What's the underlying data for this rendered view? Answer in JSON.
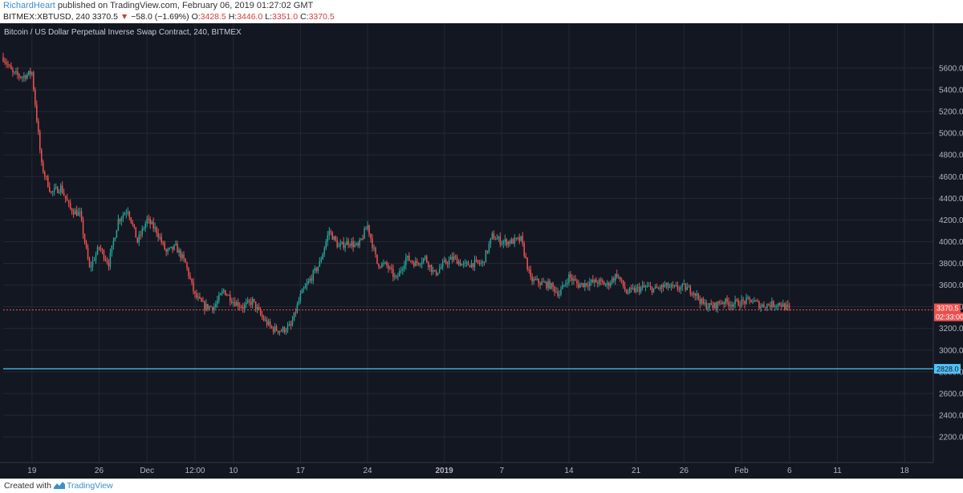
{
  "publish": {
    "author": "RichardHeart",
    "text": " published on TradingView.com, February 06, 2019 01:27:02 GMT"
  },
  "symbol": {
    "ticker": "BITMEX:XBTUSD, 240",
    "last": "3370.5",
    "change": "−58.0 (−1.69%)",
    "open_label": "O:",
    "open": "3428.5",
    "high_label": "H:",
    "high": "3446.0",
    "low_label": "L:",
    "low": "3351.0",
    "close_label": "C:",
    "close": "3370.5"
  },
  "footer": {
    "created_with": "Created with",
    "brand": "TradingView"
  },
  "colors": {
    "background": "#131722",
    "grid": "#242833",
    "up": "#26a69a",
    "down": "#ef5350",
    "price_line": "#ef5350",
    "support_line": "#4fc3f7"
  },
  "chart_data": {
    "type": "candlestick",
    "title": "Bitcoin / US Dollar Perpetual Inverse Swap Contract, 240, BITMEX",
    "y_range": [
      2000,
      5800
    ],
    "y_ticks": [
      "5600.0",
      "5400.0",
      "5200.0",
      "5000.0",
      "4800.0",
      "4600.0",
      "4400.0",
      "4200.0",
      "4000.0",
      "3800.0",
      "3600.0",
      "3400.0",
      "3200.0",
      "3000.0",
      "2800.0",
      "2600.0",
      "2400.0",
      "2200.0"
    ],
    "x_range": [
      "2018-11-16",
      "2019-02-21"
    ],
    "x_ticks": [
      {
        "label": "19",
        "date": "2018-11-19"
      },
      {
        "label": "26",
        "date": "2018-11-26"
      },
      {
        "label": "Dec",
        "date": "2018-12-01"
      },
      {
        "label": "12:00",
        "date": "2018-12-06"
      },
      {
        "label": "10",
        "date": "2018-12-10"
      },
      {
        "label": "17",
        "date": "2018-12-17"
      },
      {
        "label": "24",
        "date": "2018-12-24"
      },
      {
        "label": "2019",
        "date": "2019-01-01"
      },
      {
        "label": "7",
        "date": "2019-01-07"
      },
      {
        "label": "14",
        "date": "2019-01-14"
      },
      {
        "label": "21",
        "date": "2019-01-21"
      },
      {
        "label": "26",
        "date": "2019-01-26"
      },
      {
        "label": "Feb",
        "date": "2019-02-01"
      },
      {
        "label": "6",
        "date": "2019-02-06"
      },
      {
        "label": "11",
        "date": "2019-02-11"
      },
      {
        "label": "18",
        "date": "2019-02-18"
      }
    ],
    "price_path": [
      [
        "2018-11-16",
        5700
      ],
      [
        "2018-11-17",
        5550
      ],
      [
        "2018-11-18",
        5520
      ],
      [
        "2018-11-19",
        5560
      ],
      [
        "2018-11-20",
        4700
      ],
      [
        "2018-11-21",
        4450
      ],
      [
        "2018-11-22",
        4500
      ],
      [
        "2018-11-23",
        4300
      ],
      [
        "2018-11-24",
        4250
      ],
      [
        "2018-11-25",
        3750
      ],
      [
        "2018-11-26",
        3950
      ],
      [
        "2018-11-27",
        3800
      ],
      [
        "2018-11-28",
        4200
      ],
      [
        "2018-11-29",
        4300
      ],
      [
        "2018-11-30",
        4000
      ],
      [
        "2018-12-01",
        4200
      ],
      [
        "2018-12-02",
        4100
      ],
      [
        "2018-12-03",
        3900
      ],
      [
        "2018-12-04",
        3950
      ],
      [
        "2018-12-05",
        3800
      ],
      [
        "2018-12-06",
        3500
      ],
      [
        "2018-12-07",
        3400
      ],
      [
        "2018-12-08",
        3400
      ],
      [
        "2018-12-09",
        3550
      ],
      [
        "2018-12-10",
        3450
      ],
      [
        "2018-12-11",
        3400
      ],
      [
        "2018-12-12",
        3450
      ],
      [
        "2018-12-13",
        3300
      ],
      [
        "2018-12-14",
        3200
      ],
      [
        "2018-12-15",
        3180
      ],
      [
        "2018-12-16",
        3220
      ],
      [
        "2018-12-17",
        3500
      ],
      [
        "2018-12-18",
        3650
      ],
      [
        "2018-12-19",
        3800
      ],
      [
        "2018-12-20",
        4100
      ],
      [
        "2018-12-21",
        3950
      ],
      [
        "2018-12-22",
        4000
      ],
      [
        "2018-12-23",
        3950
      ],
      [
        "2018-12-24",
        4150
      ],
      [
        "2018-12-25",
        3800
      ],
      [
        "2018-12-26",
        3780
      ],
      [
        "2018-12-27",
        3650
      ],
      [
        "2018-12-28",
        3850
      ],
      [
        "2018-12-29",
        3800
      ],
      [
        "2018-12-30",
        3850
      ],
      [
        "2018-12-31",
        3700
      ],
      [
        "2019-01-01",
        3800
      ],
      [
        "2019-01-02",
        3850
      ],
      [
        "2019-01-03",
        3780
      ],
      [
        "2019-01-04",
        3800
      ],
      [
        "2019-01-05",
        3800
      ],
      [
        "2019-01-06",
        4050
      ],
      [
        "2019-01-07",
        4000
      ],
      [
        "2019-01-08",
        4000
      ],
      [
        "2019-01-09",
        4020
      ],
      [
        "2019-01-10",
        3650
      ],
      [
        "2019-01-11",
        3620
      ],
      [
        "2019-01-12",
        3600
      ],
      [
        "2019-01-13",
        3520
      ],
      [
        "2019-01-14",
        3680
      ],
      [
        "2019-01-15",
        3600
      ],
      [
        "2019-01-16",
        3620
      ],
      [
        "2019-01-17",
        3630
      ],
      [
        "2019-01-18",
        3600
      ],
      [
        "2019-01-19",
        3700
      ],
      [
        "2019-01-20",
        3530
      ],
      [
        "2019-01-21",
        3560
      ],
      [
        "2019-01-22",
        3580
      ],
      [
        "2019-01-23",
        3560
      ],
      [
        "2019-01-24",
        3590
      ],
      [
        "2019-01-25",
        3570
      ],
      [
        "2019-01-26",
        3580
      ],
      [
        "2019-01-27",
        3540
      ],
      [
        "2019-01-28",
        3420
      ],
      [
        "2019-01-29",
        3400
      ],
      [
        "2019-01-30",
        3450
      ],
      [
        "2019-01-31",
        3430
      ],
      [
        "2019-02-01",
        3440
      ],
      [
        "2019-02-02",
        3460
      ],
      [
        "2019-02-03",
        3410
      ],
      [
        "2019-02-04",
        3420
      ],
      [
        "2019-02-05",
        3430
      ],
      [
        "2019-02-06",
        3370
      ]
    ],
    "last_price": {
      "value": 3370.5,
      "label": "3370.5",
      "countdown": "02:33:00"
    },
    "support_line": {
      "value": 2828.0,
      "label": "2828.0"
    }
  }
}
